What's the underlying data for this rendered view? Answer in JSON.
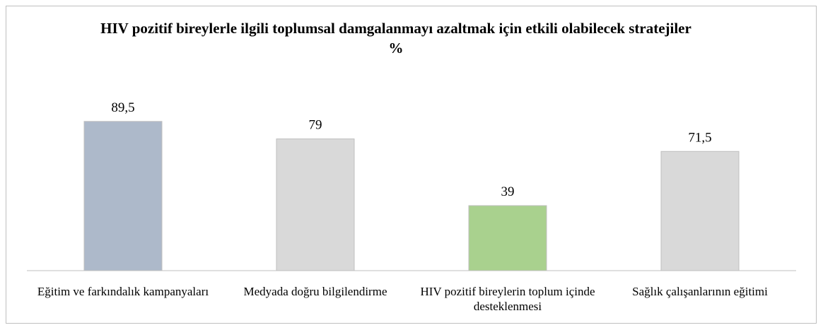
{
  "chart_data": {
    "type": "bar",
    "title": "HIV pozitif bireylerle ilgili toplumsal damgalanmayı azaltmak için etkili olabilecek stratejiler %",
    "categories": [
      "Eğitim ve farkındalık kampanyaları",
      "Medyada doğru bilgilendirme",
      "HIV pozitif bireylerin toplum içinde desteklenmesi",
      "Sağlık çalışanlarının eğitimi"
    ],
    "values": [
      89.5,
      79,
      39,
      71.5
    ],
    "value_labels": [
      "89,5",
      "79",
      "39",
      "71,5"
    ],
    "colors": [
      "#adb9ca",
      "#d9d9d9",
      "#a9d18e",
      "#d9d9d9"
    ],
    "ylim": [
      0,
      100
    ]
  }
}
